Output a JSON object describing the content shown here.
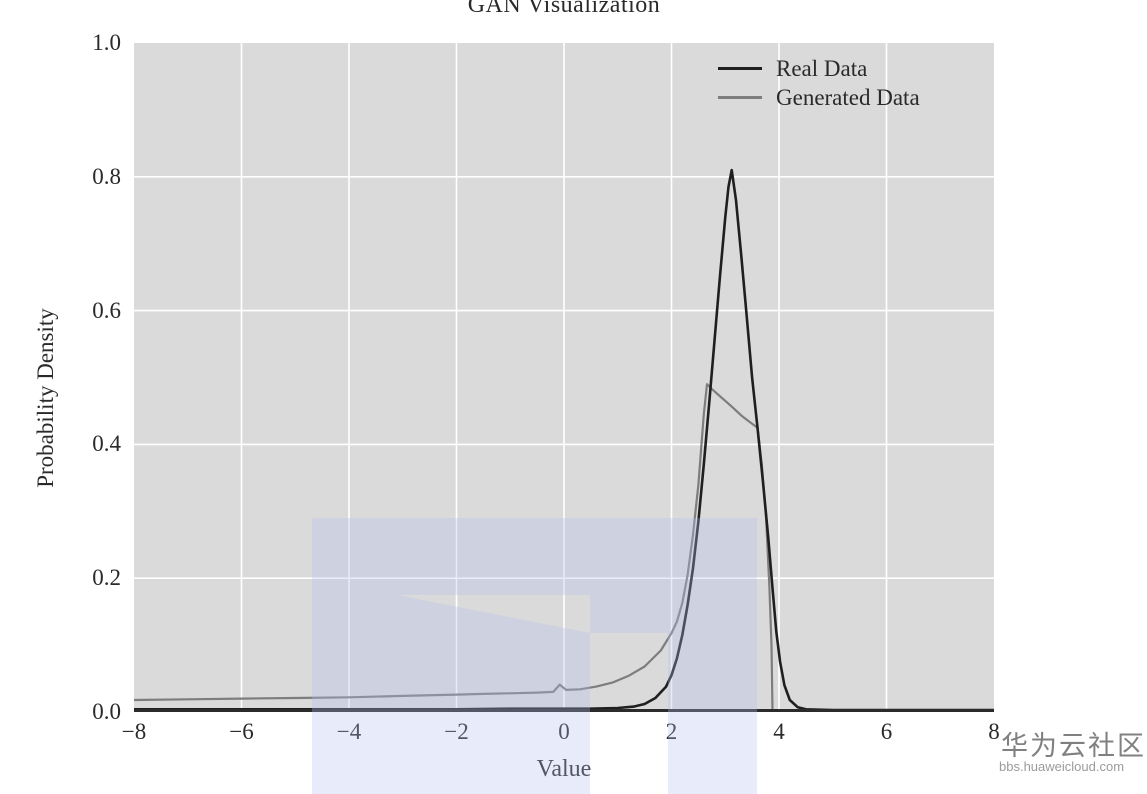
{
  "chart_data": {
    "type": "line",
    "title": "GAN Visualization",
    "xlabel": "Value",
    "ylabel": "Probability Density",
    "xlim": [
      -8,
      8
    ],
    "ylim": [
      0,
      1
    ],
    "grid": true,
    "x_ticks": [
      {
        "value": -8,
        "label": "−8"
      },
      {
        "value": -6,
        "label": "−6"
      },
      {
        "value": -4,
        "label": "−4"
      },
      {
        "value": -2,
        "label": "−2"
      },
      {
        "value": 0,
        "label": "0"
      },
      {
        "value": 2,
        "label": "2"
      },
      {
        "value": 4,
        "label": "4"
      },
      {
        "value": 6,
        "label": "6"
      },
      {
        "value": 8,
        "label": "8"
      }
    ],
    "y_ticks": [
      {
        "value": 0.0,
        "label": "0.0"
      },
      {
        "value": 0.2,
        "label": "0.2"
      },
      {
        "value": 0.4,
        "label": "0.4"
      },
      {
        "value": 0.6,
        "label": "0.6"
      },
      {
        "value": 0.8,
        "label": "0.8"
      },
      {
        "value": 1.0,
        "label": "1.0"
      }
    ],
    "legend_position": "upper right",
    "series": [
      {
        "name": "Real Data",
        "color": "#1f1f1f",
        "width": 2.6,
        "points": [
          [
            -8,
            0.004
          ],
          [
            -7,
            0.004
          ],
          [
            -6,
            0.004
          ],
          [
            -5,
            0.004
          ],
          [
            -4,
            0.004
          ],
          [
            -3,
            0.004
          ],
          [
            -2,
            0.004
          ],
          [
            -1,
            0.005
          ],
          [
            0,
            0.005
          ],
          [
            0.5,
            0.005
          ],
          [
            1.0,
            0.006
          ],
          [
            1.3,
            0.008
          ],
          [
            1.5,
            0.012
          ],
          [
            1.7,
            0.021
          ],
          [
            1.9,
            0.038
          ],
          [
            2.0,
            0.055
          ],
          [
            2.1,
            0.08
          ],
          [
            2.2,
            0.115
          ],
          [
            2.3,
            0.16
          ],
          [
            2.4,
            0.215
          ],
          [
            2.5,
            0.285
          ],
          [
            2.6,
            0.37
          ],
          [
            2.7,
            0.46
          ],
          [
            2.8,
            0.555
          ],
          [
            2.9,
            0.65
          ],
          [
            3.0,
            0.74
          ],
          [
            3.06,
            0.785
          ],
          [
            3.12,
            0.81
          ],
          [
            3.2,
            0.765
          ],
          [
            3.3,
            0.68
          ],
          [
            3.4,
            0.59
          ],
          [
            3.5,
            0.5
          ],
          [
            3.6,
            0.425
          ],
          [
            3.7,
            0.345
          ],
          [
            3.8,
            0.26
          ],
          [
            3.88,
            0.185
          ],
          [
            3.95,
            0.12
          ],
          [
            4.02,
            0.075
          ],
          [
            4.1,
            0.04
          ],
          [
            4.2,
            0.018
          ],
          [
            4.35,
            0.007
          ],
          [
            4.5,
            0.004
          ],
          [
            5,
            0.003
          ],
          [
            6,
            0.003
          ],
          [
            7,
            0.003
          ],
          [
            8,
            0.003
          ]
        ]
      },
      {
        "name": "Generated Data",
        "color": "#7d7d7d",
        "width": 2.2,
        "points": [
          [
            -8,
            0.018
          ],
          [
            -7,
            0.019
          ],
          [
            -6,
            0.02
          ],
          [
            -5,
            0.021
          ],
          [
            -4,
            0.022
          ],
          [
            -3,
            0.024
          ],
          [
            -2,
            0.026
          ],
          [
            -1.5,
            0.027
          ],
          [
            -1,
            0.028
          ],
          [
            -0.5,
            0.029
          ],
          [
            -0.2,
            0.03
          ],
          [
            -0.08,
            0.041
          ],
          [
            0.04,
            0.033
          ],
          [
            0.3,
            0.034
          ],
          [
            0.6,
            0.038
          ],
          [
            0.9,
            0.044
          ],
          [
            1.2,
            0.054
          ],
          [
            1.5,
            0.068
          ],
          [
            1.8,
            0.092
          ],
          [
            2.0,
            0.118
          ],
          [
            2.1,
            0.135
          ],
          [
            2.2,
            0.163
          ],
          [
            2.3,
            0.205
          ],
          [
            2.4,
            0.265
          ],
          [
            2.5,
            0.34
          ],
          [
            2.6,
            0.445
          ],
          [
            2.66,
            0.49
          ],
          [
            2.75,
            0.483
          ],
          [
            2.9,
            0.472
          ],
          [
            3.1,
            0.458
          ],
          [
            3.3,
            0.443
          ],
          [
            3.45,
            0.434
          ],
          [
            3.6,
            0.425
          ],
          [
            3.68,
            0.37
          ],
          [
            3.76,
            0.29
          ],
          [
            3.82,
            0.19
          ],
          [
            3.86,
            0.1
          ],
          [
            3.88,
            0.002
          ],
          [
            4.2,
            0.002
          ],
          [
            5,
            0.002
          ],
          [
            6,
            0.002
          ],
          [
            7,
            0.002
          ],
          [
            8,
            0.002
          ]
        ]
      }
    ]
  },
  "watermark": {
    "text": "华为云社区",
    "url": "bbs.huaweicloud.com",
    "tint": "rgba(180,189,235,0.30)"
  },
  "colors": {
    "plot_bg": "#dadada",
    "grid": "#ffffff",
    "spine": "#2b2b2b",
    "text": "#2a2a2a"
  }
}
